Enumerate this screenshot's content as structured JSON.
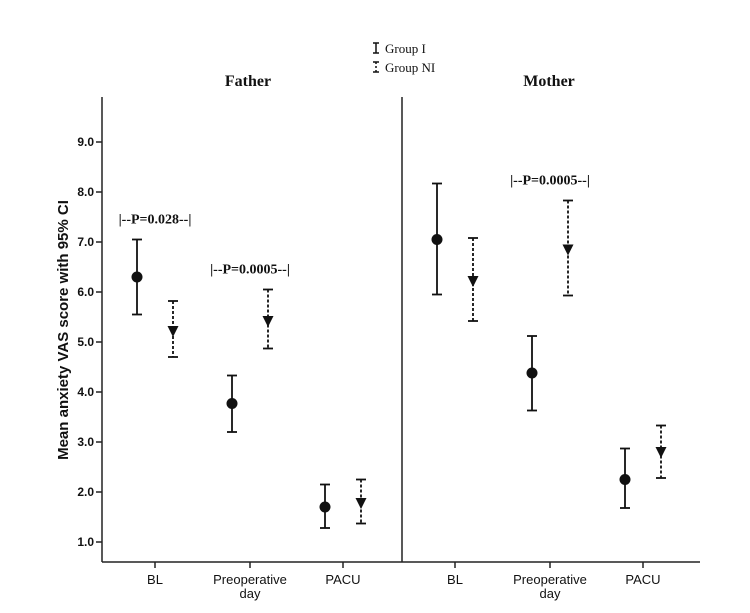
{
  "chart_data": {
    "type": "scatter",
    "ylabel": "Mean anxiety VAS score with 95% CI",
    "yticks": [
      "1.0",
      "2.0",
      "3.0",
      "4.0",
      "5.0",
      "6.0",
      "7.0",
      "8.0",
      "9.0"
    ],
    "ylim": [
      0.6,
      9.9
    ],
    "categories": [
      "BL",
      "Preoperative day",
      "PACU"
    ],
    "category_labels": [
      [
        "BL"
      ],
      [
        "Preoperative",
        "day"
      ],
      [
        "PACU"
      ]
    ],
    "legend": {
      "placement": "top-center",
      "entries": [
        {
          "label": "Group I",
          "style": "solid",
          "marker": "circle"
        },
        {
          "label": "Group NI",
          "style": "dashed",
          "marker": "triangle-down"
        }
      ]
    },
    "panels": [
      {
        "title": "Father",
        "series": [
          {
            "name": "Group I",
            "mean": [
              6.3,
              3.77,
              1.7
            ],
            "ci_low": [
              5.55,
              3.2,
              1.28
            ],
            "ci_high": [
              7.05,
              4.33,
              2.15
            ]
          },
          {
            "name": "Group NI",
            "mean": [
              5.22,
              5.42,
              1.78
            ],
            "ci_low": [
              4.7,
              4.87,
              1.37
            ],
            "ci_high": [
              5.82,
              6.05,
              2.25
            ]
          }
        ],
        "annotations": [
          {
            "text": "|--P=0.028--|",
            "category": 0
          },
          {
            "text": "|--P=0.0005--|",
            "category": 1
          }
        ]
      },
      {
        "title": "Mother",
        "series": [
          {
            "name": "Group I",
            "mean": [
              7.05,
              4.38,
              2.25
            ],
            "ci_low": [
              5.95,
              3.63,
              1.68
            ],
            "ci_high": [
              8.17,
              5.12,
              2.87
            ]
          },
          {
            "name": "Group NI",
            "mean": [
              6.22,
              6.85,
              2.8
            ],
            "ci_low": [
              5.42,
              5.93,
              2.28
            ],
            "ci_high": [
              7.08,
              7.83,
              3.33
            ]
          }
        ],
        "annotations": [
          {
            "text": "|--P=0.0005--|",
            "category": 1
          }
        ]
      }
    ],
    "grid": false
  }
}
